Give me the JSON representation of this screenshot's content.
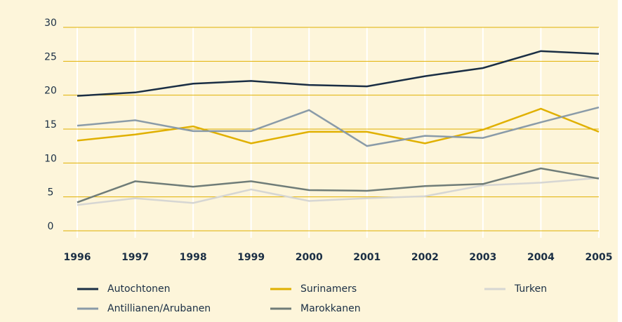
{
  "chart_data": {
    "type": "line",
    "categories": [
      "1996",
      "1997",
      "1998",
      "1999",
      "2000",
      "2001",
      "2002",
      "2003",
      "2004",
      "2005"
    ],
    "series": [
      {
        "name": "Autochtonen",
        "color": "#1a2e44",
        "values": [
          19.9,
          20.4,
          21.7,
          22.1,
          21.5,
          21.3,
          22.8,
          24.0,
          26.5,
          26.1
        ]
      },
      {
        "name": "Surinamers",
        "color": "#e0b000",
        "values": [
          13.3,
          14.2,
          15.4,
          12.9,
          14.6,
          14.6,
          12.9,
          14.9,
          18.0,
          14.6
        ]
      },
      {
        "name": "Turken",
        "color": "#d6d6d3",
        "values": [
          3.8,
          4.8,
          4.1,
          6.1,
          4.4,
          4.8,
          5.1,
          6.7,
          7.1,
          7.8
        ]
      },
      {
        "name": "Antillianen/Arubanen",
        "color": "#8a9ba8",
        "values": [
          15.5,
          16.3,
          14.7,
          14.7,
          17.8,
          12.5,
          14.0,
          13.7,
          16.0,
          18.2
        ]
      },
      {
        "name": "Marokkanen",
        "color": "#6f7c78",
        "values": [
          4.2,
          7.3,
          6.5,
          7.3,
          6.0,
          5.9,
          6.6,
          6.9,
          9.2,
          7.7
        ]
      }
    ],
    "ylim": [
      0,
      30
    ],
    "yticks": [
      0,
      5,
      10,
      15,
      20,
      25,
      30
    ],
    "grid": true
  }
}
